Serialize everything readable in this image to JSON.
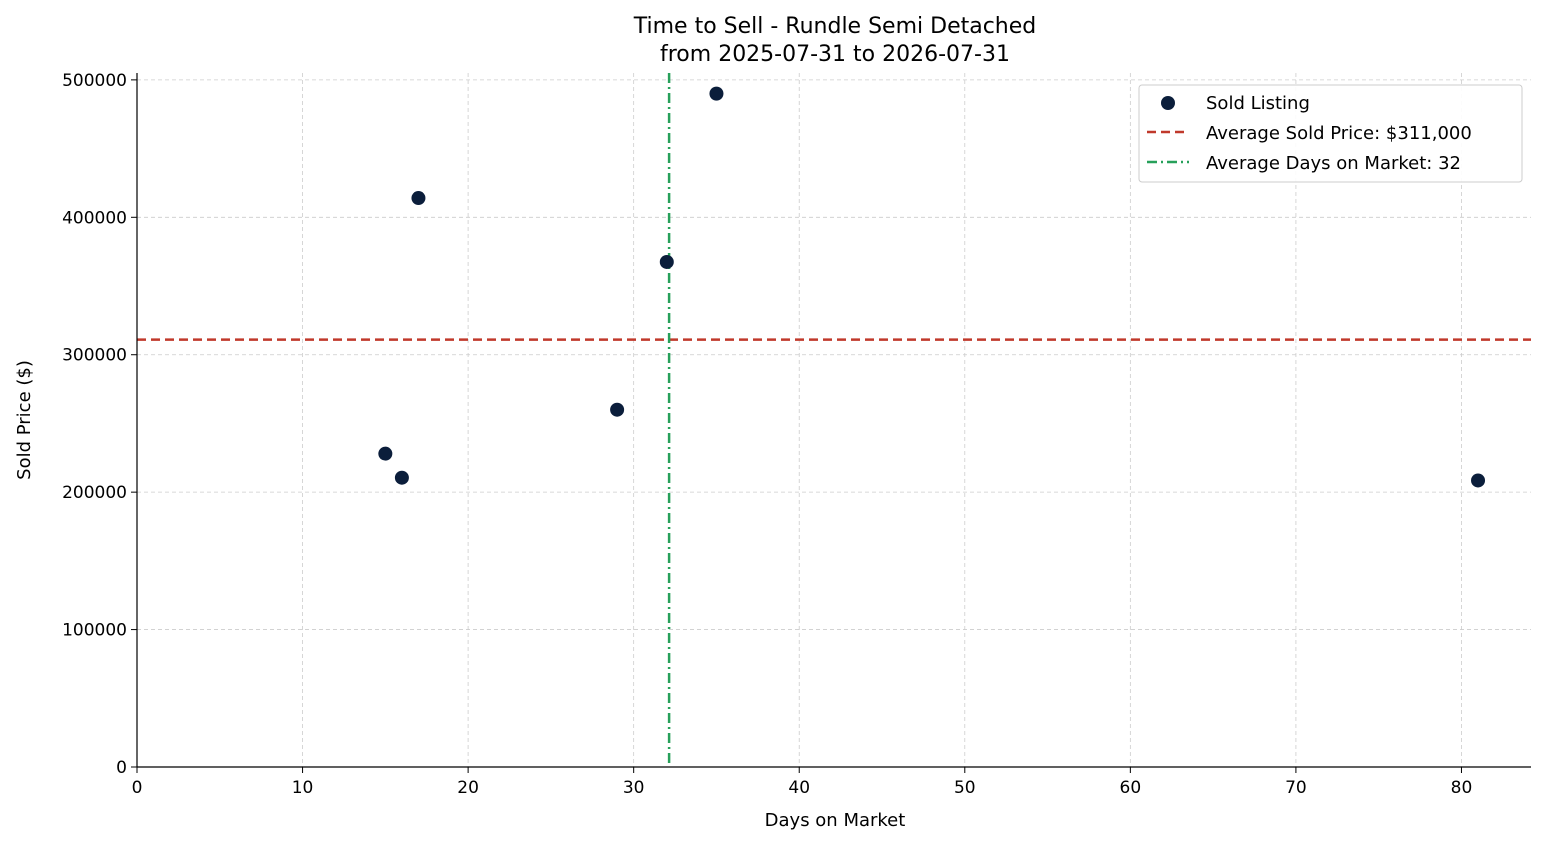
{
  "chart_data": {
    "type": "scatter",
    "title_line1": "Time to Sell - Rundle Semi Detached",
    "title_line2": "from 2025-07-31 to 2026-07-31",
    "xlabel": "Days on Market",
    "ylabel": "Sold Price ($)",
    "xlim": [
      0,
      84.2
    ],
    "ylim": [
      0,
      505000
    ],
    "xticks": [
      0,
      10,
      20,
      30,
      40,
      50,
      60,
      70,
      80
    ],
    "yticks": [
      0,
      100000,
      200000,
      300000,
      400000,
      500000
    ],
    "grid": true,
    "legend_position": "top-right",
    "series": [
      {
        "name": "Sold Listing",
        "color": "#0b1e3b",
        "points": [
          {
            "x": 15,
            "y": 228000
          },
          {
            "x": 16,
            "y": 210500
          },
          {
            "x": 17,
            "y": 414000
          },
          {
            "x": 29,
            "y": 260000
          },
          {
            "x": 32,
            "y": 367500
          },
          {
            "x": 35,
            "y": 490000
          },
          {
            "x": 81,
            "y": 208500
          }
        ]
      }
    ],
    "reference_lines": [
      {
        "name": "Average Sold Price: $311,000",
        "orientation": "horizontal",
        "value": 311000,
        "color": "#c0392b",
        "style": "dashed"
      },
      {
        "name": "Average Days on Market: 32",
        "orientation": "vertical",
        "value": 32.14,
        "color": "#27a05a",
        "style": "dashdot"
      }
    ]
  }
}
